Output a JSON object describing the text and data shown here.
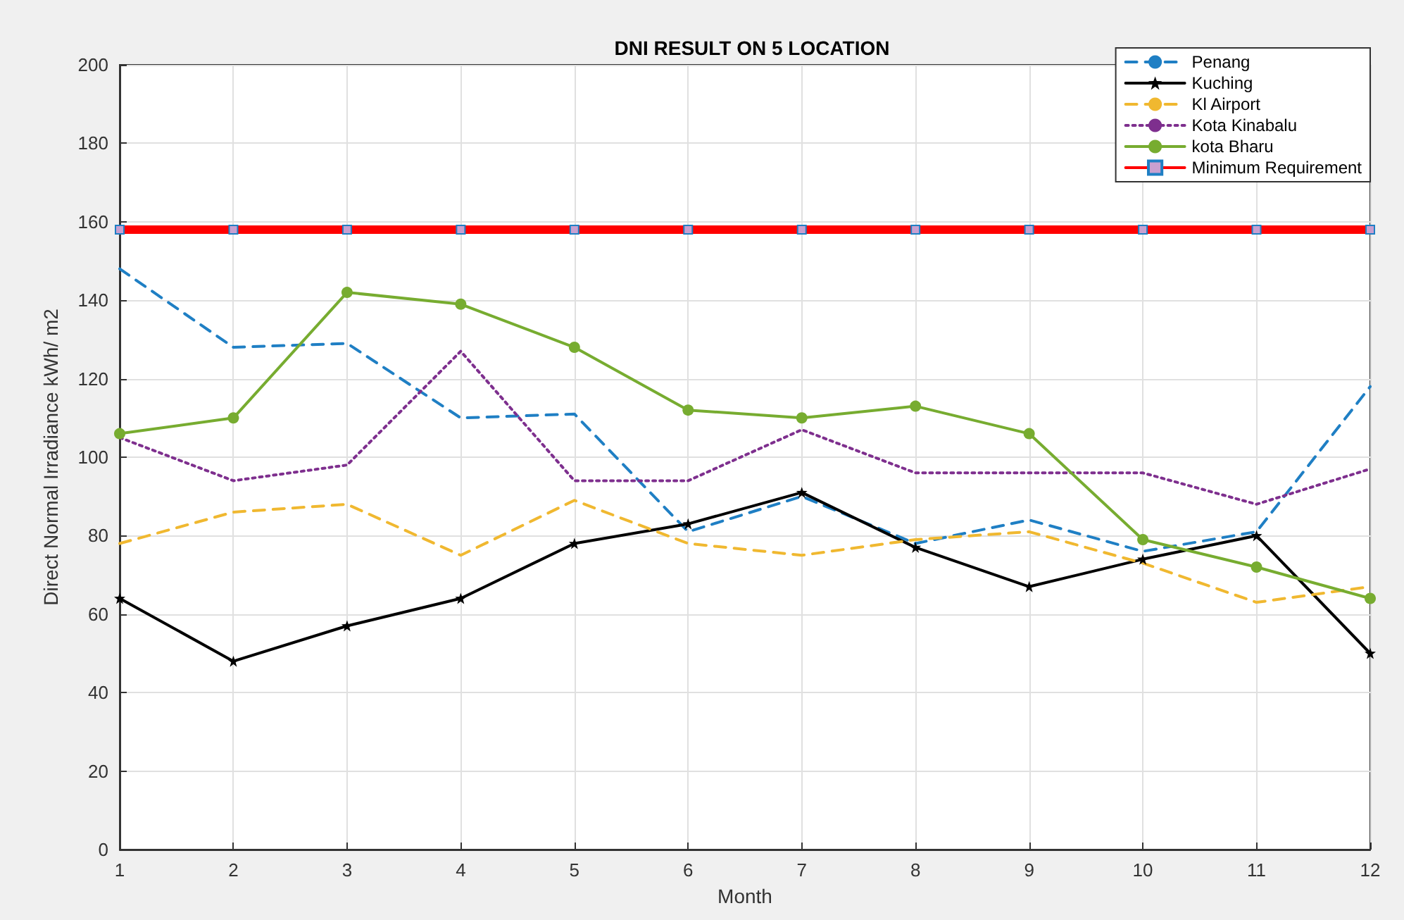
{
  "chart_data": {
    "type": "line",
    "title": "DNI RESULT ON 5 LOCATION",
    "xlabel": "Month",
    "ylabel": "Direct Normal Irradiance kWh/ m2",
    "x": [
      1,
      2,
      3,
      4,
      5,
      6,
      7,
      8,
      9,
      10,
      11,
      12
    ],
    "xlim": [
      1,
      12
    ],
    "xticks": [
      1,
      2,
      3,
      4,
      5,
      6,
      7,
      8,
      9,
      10,
      11,
      12
    ],
    "ylim": [
      0,
      200
    ],
    "yticks": [
      0,
      20,
      40,
      60,
      80,
      100,
      120,
      140,
      160,
      180,
      200
    ],
    "grid": true,
    "legend": "top right",
    "series": [
      {
        "name": "Penang",
        "color": "#1f7fc4",
        "line_style": "dashed",
        "marker": "none",
        "values": [
          148,
          128,
          129,
          110,
          111,
          81,
          90,
          78,
          84,
          76,
          81,
          118
        ]
      },
      {
        "name": "Kuching",
        "color": "#000000",
        "line_style": "solid",
        "marker": "star",
        "values": [
          64,
          48,
          57,
          64,
          78,
          83,
          91,
          77,
          67,
          74,
          80,
          50
        ]
      },
      {
        "name": "Kl Airport",
        "color": "#f0b830",
        "line_style": "dashed",
        "marker": "none",
        "values": [
          78,
          86,
          88,
          75,
          89,
          78,
          75,
          79,
          81,
          73,
          63,
          67
        ]
      },
      {
        "name": "Kota Kinabalu",
        "color": "#7e2f8e",
        "line_style": "dotted",
        "marker": "none",
        "values": [
          105,
          94,
          98,
          127,
          94,
          94,
          107,
          96,
          96,
          96,
          88,
          97
        ]
      },
      {
        "name": "kota Bharu",
        "color": "#77ac30",
        "line_style": "solid",
        "marker": "circle",
        "values": [
          106,
          110,
          142,
          139,
          128,
          112,
          110,
          113,
          106,
          79,
          72,
          64
        ]
      },
      {
        "name": "Minimum Requirement",
        "color": "#ff0000",
        "line_style": "solid",
        "marker": "square",
        "values": [
          158,
          158,
          158,
          158,
          158,
          158,
          158,
          158,
          158,
          158,
          158,
          158
        ]
      }
    ]
  }
}
